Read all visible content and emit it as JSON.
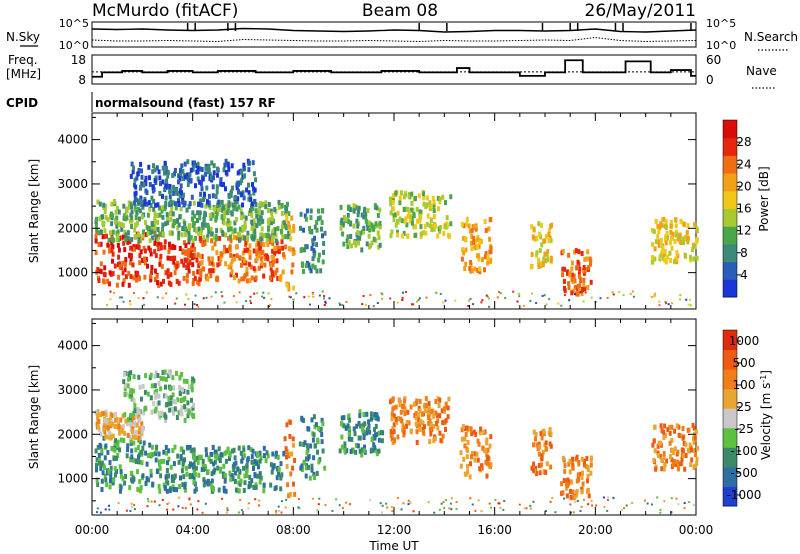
{
  "header": {
    "station": "McMurdo (fitACF)",
    "beam": "Beam 08",
    "date": "26/May/2011"
  },
  "noise_panel": {
    "left_label": "N.Sky",
    "right_label": "N.Search",
    "left_ticks": [
      "10^5",
      "10^0"
    ],
    "right_ticks": [
      "10^5",
      "10^0"
    ],
    "y_exp_range": [
      0,
      5
    ],
    "sky_exp": [
      3.6,
      3.5,
      3.6,
      3.4,
      3.3,
      3.4,
      3.7,
      3.6,
      3.3,
      3.2,
      3.1,
      3.2,
      3.4,
      3.3,
      3.0,
      3.1,
      3.3,
      3.3,
      3.2,
      3.3,
      3.6,
      3.1,
      3.0,
      3.2,
      3.4
    ],
    "search_exp": [
      1.4,
      1.2,
      1.2,
      1.3,
      1.2,
      1.1,
      1.5,
      1.4,
      1.3,
      1.2,
      1.2,
      1.3,
      1.2,
      1.1,
      1.3,
      1.2,
      1.2,
      1.3,
      1.4,
      1.3,
      1.9,
      1.3,
      1.1,
      1.2,
      1.3
    ],
    "spike_hours": [
      3.8,
      4.1,
      5.4,
      5.7,
      13.0,
      14.1,
      17.9,
      19.0,
      19.3,
      20.8,
      21.1,
      23.8
    ]
  },
  "freq_panel": {
    "left_label_1": "Freq.",
    "left_label_2": "[MHz]",
    "right_label": "Nave",
    "left_ticks": [
      "18",
      "8"
    ],
    "right_ticks": [
      "60",
      "0"
    ],
    "freq_range": [
      8,
      18
    ],
    "freq_steps": [
      [
        0.0,
        10.5
      ],
      [
        0.4,
        12.0
      ],
      [
        1.2,
        12.5
      ],
      [
        2.0,
        12.0
      ],
      [
        3.0,
        12.5
      ],
      [
        4.0,
        12.0
      ],
      [
        5.0,
        12.5
      ],
      [
        6.5,
        12.0
      ],
      [
        8.0,
        12.5
      ],
      [
        9.5,
        12.0
      ],
      [
        11.5,
        12.5
      ],
      [
        13.0,
        12.0
      ],
      [
        14.5,
        13.5
      ],
      [
        15.0,
        12.0
      ],
      [
        16.5,
        12.0
      ],
      [
        17.0,
        10.8
      ],
      [
        18.0,
        12.0
      ],
      [
        18.8,
        16.2
      ],
      [
        19.5,
        12.0
      ],
      [
        21.2,
        15.8
      ],
      [
        22.2,
        12.0
      ],
      [
        23.0,
        12.8
      ],
      [
        23.8,
        10.8
      ]
    ],
    "nave_level": 25
  },
  "cpid": {
    "label": "CPID",
    "text": "normalsound (fast) 157 RF"
  },
  "x_axis": {
    "label": "Time UT",
    "ticks": [
      "00:00",
      "04:00",
      "08:00",
      "12:00",
      "16:00",
      "20:00",
      "00:00"
    ],
    "range_hours": [
      0,
      24
    ]
  },
  "chart_data": [
    {
      "type": "heatmap",
      "title": "",
      "xlabel": "",
      "ylabel": "Slant Range [km]",
      "xlim": [
        0,
        24
      ],
      "ylim": [
        180,
        4600
      ],
      "yticks": [
        "1000",
        "2000",
        "3000",
        "4000"
      ],
      "colorbar": {
        "label": "Power [dB]",
        "ticks": [
          "4",
          "8",
          "12",
          "16",
          "20",
          "24",
          "28"
        ],
        "colors": [
          "#1a35d8",
          "#2a5db8",
          "#3d8a78",
          "#4aa64a",
          "#a8c930",
          "#f0c818",
          "#f2a015",
          "#ef6e14",
          "#e8260e",
          "#d80d0a"
        ]
      },
      "blobs": [
        {
          "t": [
            0.1,
            2.8
          ],
          "r": [
            700,
            1900
          ],
          "level": 8
        },
        {
          "t": [
            2.8,
            4.2
          ],
          "r": [
            700,
            1700
          ],
          "level": 8
        },
        {
          "t": [
            4.2,
            7.6
          ],
          "r": [
            800,
            1800
          ],
          "level": 7
        },
        {
          "t": [
            0.1,
            7.8
          ],
          "r": [
            1700,
            2600
          ],
          "level": 3
        },
        {
          "t": [
            1.5,
            6.5
          ],
          "r": [
            2500,
            3500
          ],
          "level": 1
        },
        {
          "t": [
            7.6,
            8.0
          ],
          "r": [
            600,
            2300
          ],
          "level": 6
        },
        {
          "t": [
            8.2,
            9.2
          ],
          "r": [
            1000,
            2400
          ],
          "level": 2
        },
        {
          "t": [
            9.8,
            11.5
          ],
          "r": [
            1500,
            2500
          ],
          "level": 3
        },
        {
          "t": [
            11.8,
            14.2
          ],
          "r": [
            1800,
            2800
          ],
          "level": 4
        },
        {
          "t": [
            14.6,
            15.8
          ],
          "r": [
            1000,
            2200
          ],
          "level": 6
        },
        {
          "t": [
            17.4,
            18.2
          ],
          "r": [
            1100,
            2100
          ],
          "level": 5
        },
        {
          "t": [
            18.6,
            19.8
          ],
          "r": [
            500,
            1500
          ],
          "level": 7
        },
        {
          "t": [
            22.2,
            24.0
          ],
          "r": [
            1200,
            2200
          ],
          "level": 5
        }
      ]
    },
    {
      "type": "heatmap",
      "title": "",
      "xlabel": "Time UT",
      "ylabel": "Slant Range [km]",
      "xlim": [
        0,
        24
      ],
      "ylim": [
        180,
        4600
      ],
      "yticks": [
        "1000",
        "2000",
        "3000",
        "4000"
      ],
      "colorbar": {
        "label": "Velocity [m s^-1]",
        "ticks": [
          "1000",
          "500",
          "100",
          "25",
          "-25",
          "-100",
          "-500",
          "-1000"
        ],
        "colors": [
          "#1f3fcf",
          "#2d6fa0",
          "#3a8a68",
          "#5dc040",
          "#c8c8c8",
          "#e8a530",
          "#f07d18",
          "#ee5a10",
          "#e02a0c"
        ]
      },
      "blobs": [
        {
          "t": [
            0.1,
            2.5
          ],
          "r": [
            700,
            1900
          ],
          "level": 2
        },
        {
          "t": [
            2.5,
            7.6
          ],
          "r": [
            700,
            1700
          ],
          "level": 2
        },
        {
          "t": [
            0.1,
            2.0
          ],
          "r": [
            1900,
            2500
          ],
          "level": 5
        },
        {
          "t": [
            1.2,
            4.0
          ],
          "r": [
            2300,
            3400
          ],
          "level": 3
        },
        {
          "t": [
            7.6,
            8.0
          ],
          "r": [
            600,
            2300
          ],
          "level": 6
        },
        {
          "t": [
            8.2,
            9.2
          ],
          "r": [
            1000,
            2400
          ],
          "level": 2
        },
        {
          "t": [
            9.8,
            11.5
          ],
          "r": [
            1500,
            2500
          ],
          "level": 2
        },
        {
          "t": [
            11.8,
            14.2
          ],
          "r": [
            1800,
            2800
          ],
          "level": 6
        },
        {
          "t": [
            14.6,
            15.8
          ],
          "r": [
            1000,
            2200
          ],
          "level": 6
        },
        {
          "t": [
            17.4,
            18.2
          ],
          "r": [
            1100,
            2100
          ],
          "level": 6
        },
        {
          "t": [
            18.6,
            19.8
          ],
          "r": [
            500,
            1500
          ],
          "level": 6
        },
        {
          "t": [
            22.2,
            24.0
          ],
          "r": [
            1200,
            2200
          ],
          "level": 6
        }
      ]
    }
  ]
}
